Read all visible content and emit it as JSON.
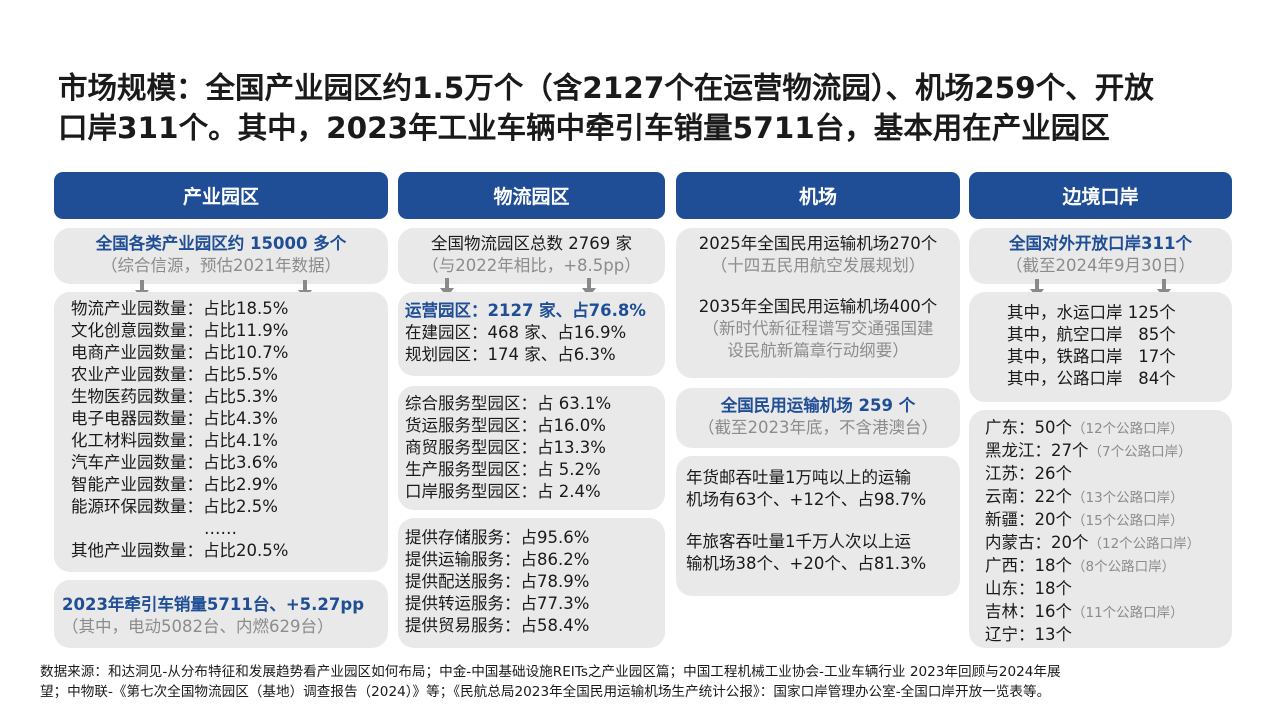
{
  "title": {
    "line1": "市场规模：全国产业园区约1.5万个（含2127个在运营物流园）、机场259个、开放",
    "line2": "口岸311个。其中，2023年工业车辆中牵引车销量5711台，基本用在产业园区"
  },
  "col1": {
    "header": "产业园区",
    "summary_title": "全国各类产业园区约 15000 多个",
    "summary_note": "（综合信源，预估2021年数据）",
    "items": [
      "物流产业园数量：占比18.5%",
      "文化创意园数量：占比11.9%",
      "电商产业园数量：占比10.7%",
      "农业产业园数量：占比5.5%",
      "生物医药园数量：占比5.3%",
      "电子电器园数量：占比4.3%",
      "化工材料园数量：占比4.1%",
      "汽车产业园数量：占比3.6%",
      "智能产业园数量：占比2.9%",
      "能源环保园数量：占比2.5%"
    ],
    "ellipsis": "……",
    "other": "其他产业园数量：占比20.5%",
    "tractor_title": "2023年牵引车销量5711台、+5.27pp",
    "tractor_note": "（其中，电动5082台、内燃629台）"
  },
  "col2": {
    "header": "物流园区",
    "summary_title": "全国物流园区总数 2769 家",
    "summary_note": "（与2022年相比，+8.5pp）",
    "operating": "运营园区：2127 家、占76.8%",
    "building": "在建园区：468 家、占16.9%",
    "planning": "规划园区：174 家、占6.3%",
    "types": [
      "综合服务型园区：占 63.1%",
      "货运服务型园区：占16.0%",
      "商贸服务型园区：占13.3%",
      "生产服务型园区：占 5.2%",
      "口岸服务型园区：占 2.4%"
    ],
    "services": [
      "提供存储服务：占95.6%",
      "提供运输服务：占86.2%",
      "提供配送服务：占78.9%",
      "提供转运服务：占77.3%",
      "提供贸易服务：占58.4%"
    ]
  },
  "col3": {
    "header": "机场",
    "plan2025": "2025年全国民用运输机场270个",
    "plan2025_note": "（十四五民用航空发展规划）",
    "plan2035": "2035年全国民用运输机场400个",
    "plan2035_note_1": "（新时代新征程谱写交通强国建",
    "plan2035_note_2": "设民航新篇章行动纲要）",
    "current_title": "全国民用运输机场 259 个",
    "current_note": "（截至2023年底，不含港澳台）",
    "cargo_1": "年货邮吞吐量1万吨以上的运输",
    "cargo_2": "机场有63个、+12个、占98.7%",
    "pax_1": "年旅客吞吐量1千万人次以上运",
    "pax_2": "输机场38个、+20个、占81.3%"
  },
  "col4": {
    "header": "边境口岸",
    "summary_title": "全国对外开放口岸311个",
    "summary_note": "（截至2024年9月30日）",
    "types": [
      "其中，水运口岸 125个",
      "其中，航空口岸   85个",
      "其中，铁路口岸   17个",
      "其中，公路口岸   84个"
    ],
    "provinces": [
      {
        "main": "广东：50个",
        "note": "（12个公路口岸）"
      },
      {
        "main": "黑龙江：27个",
        "note": "（7个公路口岸）"
      },
      {
        "main": "江苏：26个",
        "note": ""
      },
      {
        "main": "云南：22个",
        "note": "（13个公路口岸）"
      },
      {
        "main": "新疆：20个",
        "note": "（15个公路口岸）"
      },
      {
        "main": "内蒙古：20个",
        "note": "（12个公路口岸）"
      },
      {
        "main": "广西：18个",
        "note": "（8个公路口岸）"
      },
      {
        "main": "山东：18个",
        "note": ""
      },
      {
        "main": "吉林：16个",
        "note": "（11个公路口岸）"
      },
      {
        "main": "辽宁：13个",
        "note": ""
      }
    ]
  },
  "source": {
    "line1": "数据来源：和达洞见-从分布特征和发展趋势看产业园区如何布局；中金-中国基础设施REITs之产业园区篇；中国工程机械工业协会-工业车辆行业 2023年回顾与2024年展",
    "line2": "望；中物联-《第七次全国物流园区（基地）调查报告（2024）》等；《民航总局2023年全国民用运输机场生产统计公报》：国家口岸管理办公室-全国口岸开放一览表等。"
  },
  "colors": {
    "header_blue": "#1f4e96",
    "box_gray": "#e9e9e9",
    "note_gray": "#8c8c8c"
  }
}
